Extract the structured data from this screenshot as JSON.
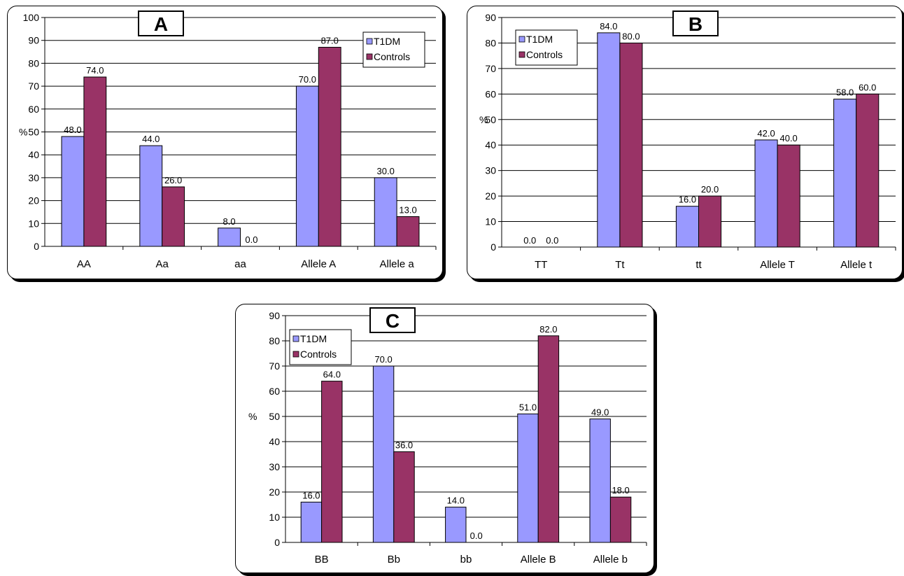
{
  "chart_data": [
    {
      "type": "bar",
      "panel_label": "A",
      "ylabel": "%",
      "ylim": [
        0,
        100
      ],
      "ytick_step": 10,
      "grid": true,
      "legend_position": "top-right",
      "categories": [
        "AA",
        "Aa",
        "aa",
        "Allele A",
        "Allele a"
      ],
      "series": [
        {
          "name": "T1DM",
          "color": "#9999ff",
          "values": [
            48.0,
            44.0,
            8.0,
            70.0,
            30.0
          ],
          "labels": [
            "48.0",
            "44.0",
            "8.0",
            "70.0",
            "30.0"
          ]
        },
        {
          "name": "Controls",
          "color": "#993366",
          "values": [
            74.0,
            26.0,
            0.0,
            87.0,
            13.0
          ],
          "labels": [
            "74.0",
            "26.0",
            "0.0",
            "87.0",
            "13.0"
          ]
        }
      ]
    },
    {
      "type": "bar",
      "panel_label": "B",
      "ylabel": "%",
      "ylim": [
        0,
        90
      ],
      "ytick_step": 10,
      "grid": true,
      "legend_position": "top-left",
      "categories": [
        "TT",
        "Tt",
        "tt",
        "Allele T",
        "Allele t"
      ],
      "series": [
        {
          "name": "T1DM",
          "color": "#9999ff",
          "values": [
            0.0,
            84.0,
            16.0,
            42.0,
            58.0
          ],
          "labels": [
            "0.0",
            "84.0",
            "16.0",
            "42.0",
            "58.0"
          ]
        },
        {
          "name": "Controls",
          "color": "#993366",
          "values": [
            0.0,
            80.0,
            20.0,
            40.0,
            60.0
          ],
          "labels": [
            "0.0",
            "80.0",
            "20.0",
            "40.0",
            "60.0"
          ]
        }
      ]
    },
    {
      "type": "bar",
      "panel_label": "C",
      "ylabel": "%",
      "ylim": [
        0,
        90
      ],
      "ytick_step": 10,
      "grid": true,
      "legend_position": "top-left",
      "categories": [
        "BB",
        "Bb",
        "bb",
        "Allele B",
        "Allele b"
      ],
      "series": [
        {
          "name": "T1DM",
          "color": "#9999ff",
          "values": [
            16.0,
            70.0,
            14.0,
            51.0,
            49.0
          ],
          "labels": [
            "16.0",
            "70.0",
            "14.0",
            "51.0",
            "49.0"
          ]
        },
        {
          "name": "Controls",
          "color": "#993366",
          "values": [
            64.0,
            36.0,
            0.0,
            82.0,
            18.0
          ],
          "labels": [
            "64.0",
            "36.0",
            "0.0",
            "82.0",
            "18.0"
          ]
        }
      ]
    }
  ]
}
